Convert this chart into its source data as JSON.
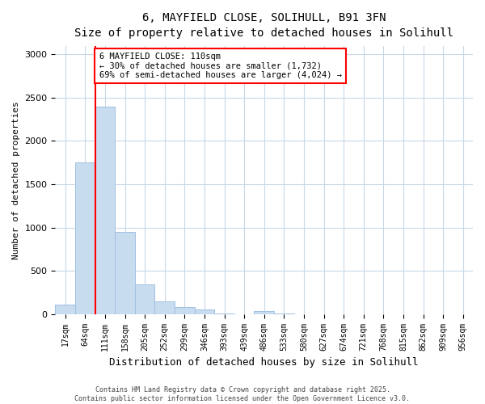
{
  "title_line1": "6, MAYFIELD CLOSE, SOLIHULL, B91 3FN",
  "title_line2": "Size of property relative to detached houses in Solihull",
  "xlabel": "Distribution of detached houses by size in Solihull",
  "ylabel": "Number of detached properties",
  "categories": [
    "17sqm",
    "64sqm",
    "111sqm",
    "158sqm",
    "205sqm",
    "252sqm",
    "299sqm",
    "346sqm",
    "393sqm",
    "439sqm",
    "486sqm",
    "533sqm",
    "580sqm",
    "627sqm",
    "674sqm",
    "721sqm",
    "768sqm",
    "815sqm",
    "862sqm",
    "909sqm",
    "956sqm"
  ],
  "values": [
    110,
    1750,
    2400,
    950,
    340,
    150,
    80,
    50,
    5,
    0,
    30,
    5,
    0,
    0,
    0,
    0,
    0,
    0,
    0,
    0,
    0
  ],
  "bar_color": "#c8dcf0",
  "bar_edge_color": "#a0c0e0",
  "marker_bar_index": 2,
  "annotation_title": "6 MAYFIELD CLOSE: 110sqm",
  "annotation_line2": "← 30% of detached houses are smaller (1,732)",
  "annotation_line3": "69% of semi-detached houses are larger (4,024) →",
  "ylim": [
    0,
    3100
  ],
  "yticks": [
    0,
    500,
    1000,
    1500,
    2000,
    2500,
    3000
  ],
  "grid_color": "#c8d8e8",
  "background_color": "#ffffff",
  "footer_line1": "Contains HM Land Registry data © Crown copyright and database right 2025.",
  "footer_line2": "Contains public sector information licensed under the Open Government Licence v3.0."
}
